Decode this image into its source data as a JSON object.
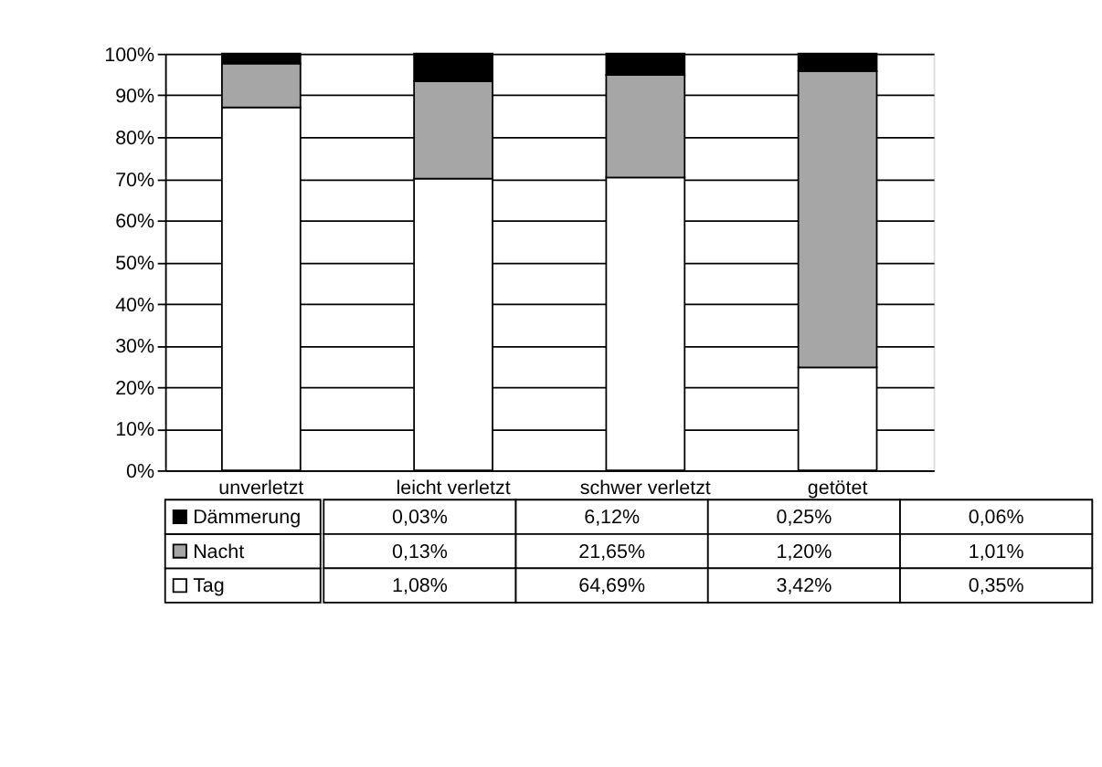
{
  "chart_data": {
    "type": "bar",
    "stacked": true,
    "categories": [
      "unverletzt",
      "leicht verletzt",
      "schwer verletzt",
      "getötet"
    ],
    "series": [
      {
        "name": "Tag",
        "color": "#ffffff",
        "values": [
          87.1,
          70.0,
          70.3,
          24.7
        ]
      },
      {
        "name": "Nacht",
        "color": "#a6a6a6",
        "values": [
          10.5,
          23.4,
          24.6,
          71.1
        ]
      },
      {
        "name": "Dämmerung",
        "color": "#000000",
        "values": [
          2.4,
          6.6,
          5.1,
          4.2
        ]
      }
    ],
    "annotations": [
      "0,03%",
      "6,12%",
      "0,25%",
      "0,06%",
      "0,13%",
      "21,65%",
      "1,20%",
      "1,01%",
      "1,08%",
      "64,69%",
      "3,42%",
      "0,35%"
    ],
    "ylim": [
      0,
      100
    ],
    "yticks": [
      {
        "value": 0,
        "label": "0%"
      },
      {
        "value": 10,
        "label": "10%"
      },
      {
        "value": 20,
        "label": "20%"
      },
      {
        "value": 30,
        "label": "30%"
      },
      {
        "value": 40,
        "label": "40%"
      },
      {
        "value": 50,
        "label": "50%"
      },
      {
        "value": 60,
        "label": "60%"
      },
      {
        "value": 70,
        "label": "70%"
      },
      {
        "value": 80,
        "label": "80%"
      },
      {
        "value": 90,
        "label": "90%"
      },
      {
        "value": 100,
        "label": "100%"
      }
    ],
    "grid": "y",
    "legend": "bottom left"
  }
}
